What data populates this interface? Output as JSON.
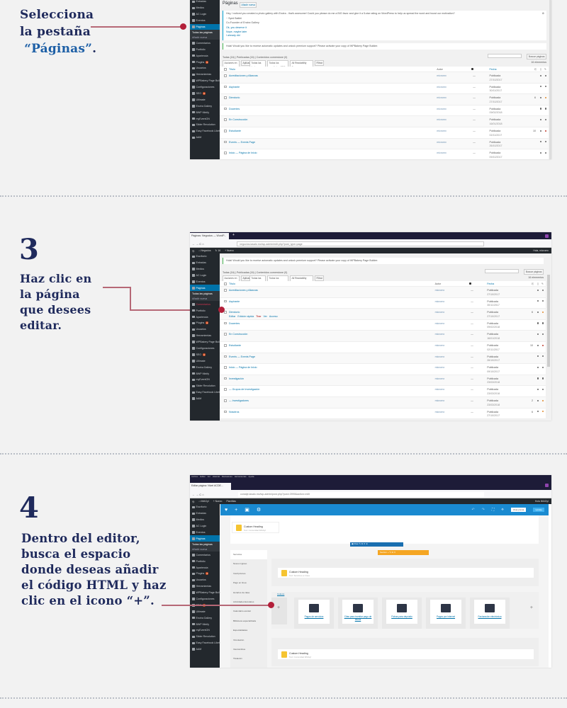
{
  "steps": [
    {
      "number": "",
      "lines": [
        "Selecciona",
        "la pestaña"
      ],
      "accent": "“Páginas”",
      "suffix": "."
    },
    {
      "number": "3",
      "lines": [
        "Haz clic en",
        "la página",
        "que desees",
        "editar."
      ]
    },
    {
      "number": "4",
      "lines": [
        "Dentro del editor,",
        "busca el espacio",
        "donde deseas añadir",
        "el código HTML y haz",
        "clic en el icono “+”."
      ]
    }
  ],
  "colors": {
    "text": "#1f2a5c",
    "accent": "#1d5fa6",
    "connector": "#b66876",
    "dot": "#b3203a",
    "wp_sidebar": "#23282d",
    "wp_active": "#0073aa",
    "builder_bar": "#1a8ad0"
  },
  "browser": {
    "tab_title": "Páginas: Negocios — WordP...",
    "url": "negocios.iasalo.mx/wp-admin/edit.php?post_type=page",
    "editor_tab_title": "Editar página: Nivel ACDE...",
    "editor_url": "conalyt.iasalo.mx/wp-admin/post.php?post=3990&action=edit",
    "editor_menu": [
      "Archivo",
      "Editar",
      "Ver",
      "Historial",
      "Marcadores",
      "Herramientas",
      "Ayuda"
    ]
  },
  "adminbar": {
    "site": "Negocios",
    "updates": "16",
    "new": "+ Nuevo",
    "greeting": "Hola, micromx",
    "editor_site": "IMAGyI",
    "editor_templates": "Plantillas",
    "editor_greeting": "Hola IMAGyI"
  },
  "sidebar": [
    "Escritorio",
    "Entradas",
    "Medios",
    "AC Login",
    "Eventos",
    "Páginas",
    "Todas las páginas",
    "Añadir nueva",
    "Comentarios",
    "Portfolio",
    "Apariencia",
    "Plugins",
    "Usuarios",
    "Herramientas",
    "WPBakery Page Builder",
    "Configuraciones",
    "SEO",
    "Ultimate",
    "Envira Gallery",
    "BWP Minify",
    "myEventON",
    "Slider Revolution",
    "Easy Facebook Likebox",
    "AAM"
  ],
  "pages_screen": {
    "title": "Páginas",
    "add_new": "Añadir nueva",
    "envira_notice": [
      "Hey, I noticed you created a photo gallery with Envira - that's awesome! Could you please do me a BIG favor and give it a 5-star rating on WordPress to help us spread the word and boost our motivation?",
      "~ Syed Balkhi",
      "Co-Founder of Envira Gallery",
      "Ok, you deserve it",
      "Nope, maybe later",
      "I already did"
    ],
    "wpbakery_notice": "Hola! Would you like to receive automatic updates and unlock premium support? Please activate your copy of WPBakery Page Builder.",
    "filters": "Todas (16) | Publicadas (16) | Contenidos cornerstone (0)",
    "search_button": "Buscar páginas",
    "bulk": "Acciones en lote",
    "apply": "Aplicar",
    "dates": "Todas las fechas",
    "seo": "Todos los resultados SEO",
    "readability": "All Readability Scores",
    "filter": "Filtrar",
    "count": "16 elementos",
    "columns": [
      "Título",
      "Autor",
      "Fecha"
    ],
    "row_actions": [
      "Editar",
      "Edición rápida",
      "Tirar",
      "Ver",
      "Acceso"
    ],
    "rows": [
      {
        "title": "Acreditaciones y Alianzas",
        "author": "micromx",
        "status": "Publicada",
        "date": "27/10/2017",
        "links": "",
        "seo": "#666"
      },
      {
        "title": "Aspirante",
        "author": "micromx",
        "status": "Publicada",
        "date": "30/11/2017",
        "links": "",
        "seo": "#666"
      },
      {
        "title": "Directorio",
        "author": "micromx",
        "status": "Publicada",
        "date": "27/10/2017",
        "links": "6",
        "seo": "#e08a2c"
      },
      {
        "title": "Docentes",
        "author": "micromx",
        "status": "Publicada",
        "date": "09/02/2018",
        "links": "",
        "seo": "#666"
      },
      {
        "title": "En Construcción",
        "author": "micromx",
        "status": "Publicada",
        "date": "16/01/2018",
        "links": "",
        "seo": "#666"
      },
      {
        "title": "Estudiante",
        "author": "micromx",
        "status": "Publicada",
        "date": "02/11/2017",
        "links": "10",
        "seo": "#c0392b"
      },
      {
        "title": "Events — Events Page",
        "author": "micromx",
        "status": "Publicada",
        "date": "26/10/2017",
        "links": "",
        "seo": "#666"
      },
      {
        "title": "Inicio — Página de Inicio",
        "author": "micromx",
        "status": "Publicada",
        "date": "09/10/2017",
        "links": "",
        "seo": "#666"
      },
      {
        "title": "Investigación",
        "author": "micromx",
        "status": "Publicada",
        "date": "23/03/2018",
        "links": "",
        "seo": "#666"
      },
      {
        "title": "— Grupos de Investigación",
        "author": "micromx",
        "status": "Publicada",
        "date": "23/03/2018",
        "links": "",
        "seo": "#666"
      },
      {
        "title": "— Investigadores",
        "author": "micromx",
        "status": "Publicada",
        "date": "23/03/2018",
        "links": "2",
        "seo": "#e08a2c"
      },
      {
        "title": "Nosotros",
        "author": "micromx",
        "status": "Publicada",
        "date": "27/10/2017",
        "links": "6",
        "seo": "#e08a2c"
      }
    ]
  },
  "editor": {
    "heading": "Custom Heading",
    "heading_sub": "Text: Servicios en línea",
    "heading_sub2": "Text: Comunidad IMAGyI",
    "preview": "Vista previa",
    "update": "Update",
    "tab_group": "Section",
    "column_label": "Column",
    "tabs": [
      "Servicios",
      "Nuevo ingreso",
      "Inscripciones",
      "Pago en línea",
      "Horarios de clase",
      "Actividades Escolares",
      "Calendario escolar",
      "Biblioteca especializada",
      "Especialidades",
      "Vinculación",
      "Intercambios",
      "Titulación",
      "Lo"
    ],
    "cards": [
      "Pagos de servicios",
      "Citas para tramitar pago de títulos",
      "Fichas para depósito",
      "Pagos por internet",
      "Facturación electrónica"
    ]
  }
}
